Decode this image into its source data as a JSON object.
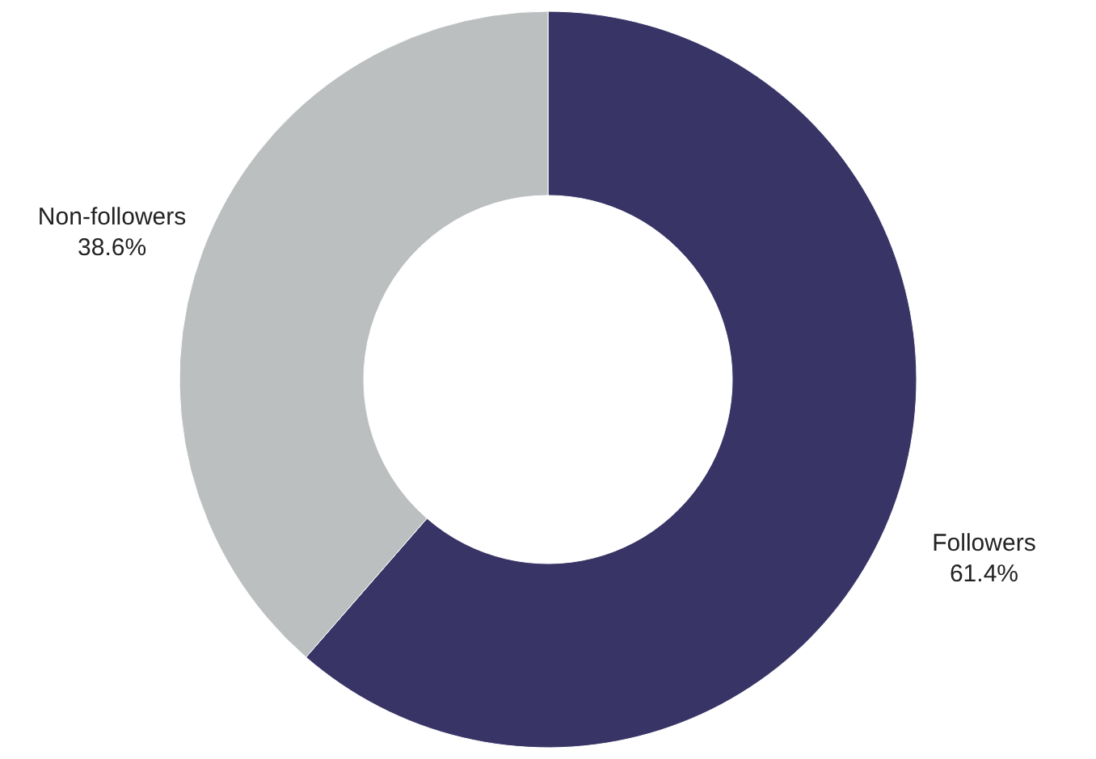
{
  "chart_data": {
    "type": "donut",
    "categories": [
      "Followers",
      "Non-followers"
    ],
    "values": [
      61.4,
      38.6
    ],
    "value_labels": [
      "61.4%",
      "38.6%"
    ],
    "colors": [
      "#383466",
      "#bcbfc0"
    ]
  }
}
